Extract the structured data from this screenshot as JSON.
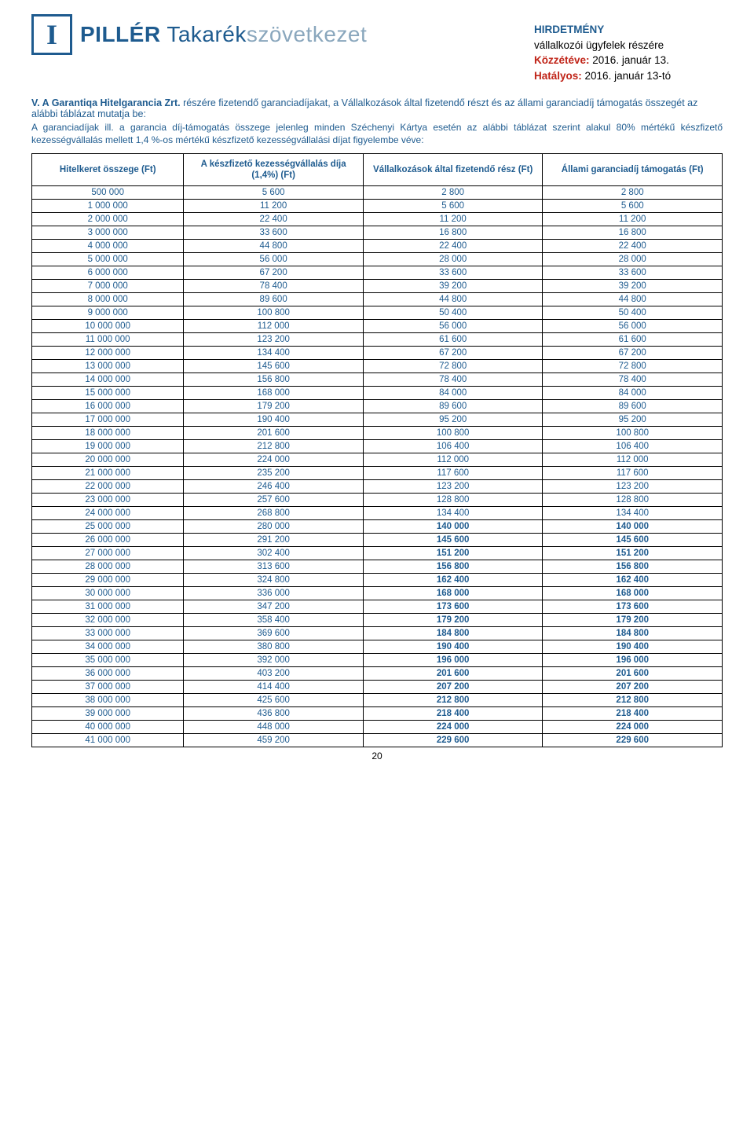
{
  "colors": {
    "brand_primary": "#1e5b8f",
    "brand_secondary": "#8aa7bd",
    "table_text": "#1e5b8f",
    "bold_row": "#1e5b8f",
    "border": "#000000",
    "accent_red": "#c02418",
    "black": "#000000"
  },
  "logo": {
    "letter": "I",
    "strong": "PILLÉR",
    "mid": " Takarék",
    "light": "szövetkezet"
  },
  "header": {
    "title": "HIRDETMÉNY",
    "line1": "vállalkozói ügyfelek részére",
    "pub_label": "Közzétéve:",
    "pub_value": " 2016. január 13.",
    "eff_label": "Hatályos:",
    "eff_value": " 2016. január 13-tó"
  },
  "section": {
    "heading": "V.   A Garantiqa Hitelgarancia Zrt.",
    "heading2": " részére fizetendő garanciadíjakat, a Vállalkozások által fizetendő részt és az állami garanciadíj támogatás összegét az alábbi táblázat mutatja be:",
    "para": "A garanciadíjak ill. a garancia díj-támogatás összege jelenleg minden Széchenyi Kártya esetén az alábbi táblázat szerint alakul 80% mértékű készfizető kezességvállalás mellett 1,4 %-os mértékű készfizető kezességvállalási díjat figyelembe véve:"
  },
  "table": {
    "headers": [
      "Hitelkeret összege (Ft)",
      "A készfizető kezességvállalás díja (1,4%) (Ft)",
      "Vállalkozások által fizetendő rész (Ft)",
      "Állami garanciadíj támogatás (Ft)"
    ],
    "bold_from_index": 25,
    "rows": [
      [
        "500 000",
        "5 600",
        "2 800",
        "2 800"
      ],
      [
        "1 000 000",
        "11 200",
        "5 600",
        "5 600"
      ],
      [
        "2 000 000",
        "22 400",
        "11 200",
        "11 200"
      ],
      [
        "3 000 000",
        "33 600",
        "16 800",
        "16 800"
      ],
      [
        "4 000 000",
        "44 800",
        "22 400",
        "22 400"
      ],
      [
        "5 000 000",
        "56 000",
        "28 000",
        "28 000"
      ],
      [
        "6 000 000",
        "67 200",
        "33 600",
        "33 600"
      ],
      [
        "7 000 000",
        "78 400",
        "39 200",
        "39 200"
      ],
      [
        "8 000 000",
        "89 600",
        "44 800",
        "44 800"
      ],
      [
        "9 000 000",
        "100 800",
        "50 400",
        "50 400"
      ],
      [
        "10 000 000",
        "112 000",
        "56 000",
        "56 000"
      ],
      [
        "11 000 000",
        "123 200",
        "61 600",
        "61 600"
      ],
      [
        "12 000 000",
        "134 400",
        "67 200",
        "67 200"
      ],
      [
        "13 000 000",
        "145 600",
        "72 800",
        "72 800"
      ],
      [
        "14 000 000",
        "156 800",
        "78 400",
        "78 400"
      ],
      [
        "15 000 000",
        "168 000",
        "84 000",
        "84 000"
      ],
      [
        "16 000 000",
        "179 200",
        "89 600",
        "89 600"
      ],
      [
        "17 000 000",
        "190 400",
        "95 200",
        "95 200"
      ],
      [
        "18 000 000",
        "201 600",
        "100 800",
        "100 800"
      ],
      [
        "19 000 000",
        "212 800",
        "106 400",
        "106 400"
      ],
      [
        "20 000 000",
        "224 000",
        "112 000",
        "112 000"
      ],
      [
        "21 000 000",
        "235 200",
        "117 600",
        "117 600"
      ],
      [
        "22 000 000",
        "246 400",
        "123 200",
        "123 200"
      ],
      [
        "23 000 000",
        "257 600",
        "128 800",
        "128 800"
      ],
      [
        "24 000 000",
        "268 800",
        "134 400",
        "134 400"
      ],
      [
        "25 000 000",
        "280 000",
        "140 000",
        "140 000"
      ],
      [
        "26 000 000",
        "291 200",
        "145 600",
        "145 600"
      ],
      [
        "27 000 000",
        "302 400",
        "151 200",
        "151 200"
      ],
      [
        "28 000 000",
        "313 600",
        "156 800",
        "156 800"
      ],
      [
        "29 000 000",
        "324 800",
        "162 400",
        "162 400"
      ],
      [
        "30 000 000",
        "336 000",
        "168 000",
        "168 000"
      ],
      [
        "31 000 000",
        "347 200",
        "173 600",
        "173 600"
      ],
      [
        "32 000 000",
        "358 400",
        "179 200",
        "179 200"
      ],
      [
        "33 000 000",
        "369 600",
        "184 800",
        "184 800"
      ],
      [
        "34 000 000",
        "380 800",
        "190 400",
        "190 400"
      ],
      [
        "35 000 000",
        "392 000",
        "196 000",
        "196 000"
      ],
      [
        "36 000 000",
        "403 200",
        "201 600",
        "201 600"
      ],
      [
        "37 000 000",
        "414 400",
        "207 200",
        "207 200"
      ],
      [
        "38 000 000",
        "425 600",
        "212 800",
        "212 800"
      ],
      [
        "39 000 000",
        "436 800",
        "218 400",
        "218 400"
      ],
      [
        "40 000 000",
        "448 000",
        "224 000",
        "224 000"
      ],
      [
        "41 000 000",
        "459 200",
        "229 600",
        "229 600"
      ]
    ]
  },
  "page": "20"
}
